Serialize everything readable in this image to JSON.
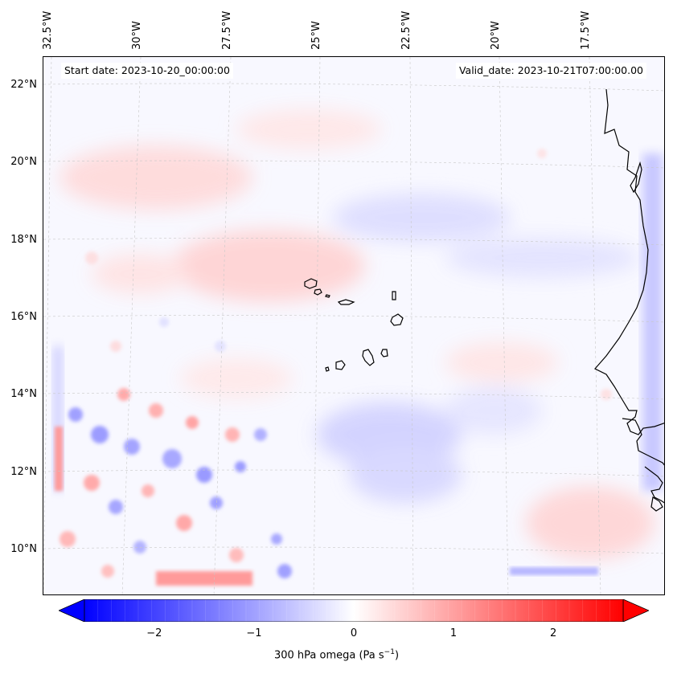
{
  "map": {
    "start_date": "Start date: 2023-10-20_00:00:00",
    "valid_date": "Valid_date: 2023-10-21T07:00:00.00",
    "lon_labels": [
      "32.5°W",
      "30°W",
      "27.5°W",
      "25°W",
      "22.5°W",
      "20°W",
      "17.5°W"
    ],
    "lat_labels": [
      "22°N",
      "20°N",
      "18°N",
      "16°N",
      "14°N",
      "12°N",
      "10°N"
    ],
    "field": "300 hPa omega",
    "colors": {
      "negative": "#0000ff",
      "zero": "#ffffff",
      "positive": "#ff0000",
      "coastline": "#000000",
      "gridline": "#c8c8c8"
    }
  },
  "colorbar": {
    "label_text": "300 hPa omega (Pa s",
    "label_sup": "−1",
    "label_close": ")",
    "ticks": [
      "−2",
      "−1",
      "0",
      "1",
      "2"
    ],
    "min": -2.7,
    "max": 2.7,
    "tick_values": [
      -2,
      -1,
      0,
      1,
      2
    ]
  }
}
